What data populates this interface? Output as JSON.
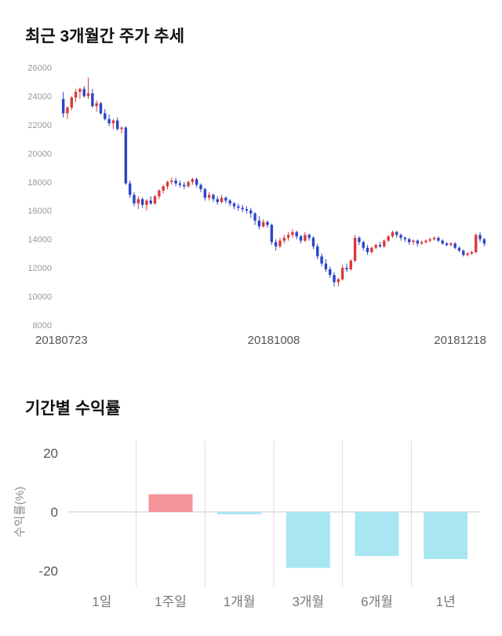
{
  "price_section": {
    "title": "최근 3개월간 주가 추세"
  },
  "returns_section": {
    "title": "기간별 수익률"
  },
  "chart_data": [
    {
      "type": "candlestick",
      "title": "최근 3개월간 주가 추세",
      "ylim": [
        8000,
        26000
      ],
      "yticks": [
        26000,
        24000,
        22000,
        20000,
        18000,
        16000,
        14000,
        12000,
        10000,
        8000
      ],
      "xtick_labels": [
        "20180723",
        "20181008",
        "20181218"
      ],
      "colors": {
        "up": "#d93a3a",
        "down": "#2b45c8",
        "tick_text": "#999999",
        "xlabel_text": "#555555"
      },
      "candles": [
        [
          23800,
          24300,
          22500,
          22800
        ],
        [
          22800,
          23300,
          22400,
          23200
        ],
        [
          23200,
          24000,
          23000,
          23900
        ],
        [
          23900,
          24500,
          23600,
          24300
        ],
        [
          24300,
          24600,
          23800,
          24500
        ],
        [
          24500,
          24700,
          23900,
          24000
        ],
        [
          24000,
          25300,
          23800,
          24200
        ],
        [
          24200,
          24500,
          23200,
          23300
        ],
        [
          23300,
          23700,
          22900,
          23500
        ],
        [
          23500,
          23600,
          22700,
          22800
        ],
        [
          22800,
          23100,
          22300,
          22400
        ],
        [
          22400,
          22700,
          21900,
          22100
        ],
        [
          22100,
          22400,
          21700,
          22300
        ],
        [
          22300,
          22500,
          21600,
          21700
        ],
        [
          21700,
          21900,
          21400,
          21800
        ],
        [
          21800,
          21900,
          17800,
          17900
        ],
        [
          17900,
          18100,
          16900,
          17100
        ],
        [
          17100,
          17300,
          16300,
          16500
        ],
        [
          16500,
          17000,
          16100,
          16800
        ],
        [
          16800,
          16900,
          16200,
          16400
        ],
        [
          16400,
          16800,
          16000,
          16700
        ],
        [
          16700,
          17000,
          16400,
          16500
        ],
        [
          16500,
          17100,
          16400,
          17000
        ],
        [
          17000,
          17500,
          16800,
          17400
        ],
        [
          17400,
          17800,
          17200,
          17700
        ],
        [
          17700,
          18100,
          17500,
          18000
        ],
        [
          18000,
          18300,
          17800,
          18100
        ],
        [
          18100,
          18300,
          17700,
          17900
        ],
        [
          17900,
          18100,
          17600,
          17800
        ],
        [
          17800,
          18000,
          17500,
          17700
        ],
        [
          17700,
          18100,
          17600,
          18000
        ],
        [
          18000,
          18300,
          17800,
          18200
        ],
        [
          18200,
          18300,
          17600,
          17800
        ],
        [
          17800,
          17900,
          17300,
          17500
        ],
        [
          17500,
          17600,
          16700,
          16900
        ],
        [
          16900,
          17300,
          16700,
          17100
        ],
        [
          17100,
          17200,
          16600,
          16800
        ],
        [
          16800,
          17000,
          16400,
          16600
        ],
        [
          16600,
          17100,
          16500,
          16900
        ],
        [
          16900,
          17000,
          16500,
          16700
        ],
        [
          16700,
          16800,
          16300,
          16500
        ],
        [
          16500,
          16600,
          16100,
          16300
        ],
        [
          16300,
          16500,
          16000,
          16200
        ],
        [
          16200,
          16400,
          15900,
          16100
        ],
        [
          16100,
          16300,
          15800,
          16000
        ],
        [
          16000,
          16200,
          15500,
          15800
        ],
        [
          15800,
          15900,
          15000,
          15300
        ],
        [
          15300,
          15600,
          14700,
          14900
        ],
        [
          14900,
          15400,
          14800,
          15200
        ],
        [
          15200,
          15300,
          14800,
          15000
        ],
        [
          15000,
          15100,
          13600,
          13800
        ],
        [
          13800,
          14000,
          13200,
          13500
        ],
        [
          13500,
          14100,
          13400,
          13900
        ],
        [
          13900,
          14300,
          13700,
          14100
        ],
        [
          14100,
          14500,
          13900,
          14300
        ],
        [
          14300,
          14700,
          14100,
          14500
        ],
        [
          14500,
          14600,
          14000,
          14200
        ],
        [
          14200,
          14300,
          13700,
          13900
        ],
        [
          13900,
          14500,
          13800,
          14300
        ],
        [
          14300,
          14400,
          13900,
          14100
        ],
        [
          14100,
          14200,
          13300,
          13500
        ],
        [
          13500,
          13700,
          12600,
          12800
        ],
        [
          12800,
          13000,
          12100,
          12300
        ],
        [
          12300,
          12600,
          11700,
          11900
        ],
        [
          11900,
          12100,
          11300,
          11500
        ],
        [
          11500,
          11700,
          10700,
          11000
        ],
        [
          11000,
          11300,
          10700,
          11200
        ],
        [
          11200,
          12200,
          11100,
          12000
        ],
        [
          12000,
          12300,
          11700,
          11900
        ],
        [
          11900,
          12600,
          11800,
          12500
        ],
        [
          12500,
          14300,
          12400,
          14100
        ],
        [
          14100,
          14200,
          13600,
          13800
        ],
        [
          13800,
          13900,
          13200,
          13400
        ],
        [
          13400,
          13600,
          12900,
          13100
        ],
        [
          13100,
          13500,
          13000,
          13400
        ],
        [
          13400,
          13700,
          13300,
          13600
        ],
        [
          13600,
          13800,
          13400,
          13500
        ],
        [
          13500,
          14000,
          13400,
          13900
        ],
        [
          13900,
          14300,
          13800,
          14200
        ],
        [
          14200,
          14600,
          14100,
          14500
        ],
        [
          14500,
          14600,
          14100,
          14300
        ],
        [
          14300,
          14400,
          13900,
          14100
        ],
        [
          14100,
          14200,
          13800,
          14000
        ],
        [
          14000,
          14100,
          13600,
          13800
        ],
        [
          13800,
          14000,
          13600,
          13900
        ],
        [
          13900,
          14000,
          13500,
          13700
        ],
        [
          13700,
          13900,
          13600,
          13800
        ],
        [
          13800,
          14000,
          13700,
          13900
        ],
        [
          13900,
          14100,
          13800,
          14000
        ],
        [
          14000,
          14200,
          13900,
          14100
        ],
        [
          14100,
          14200,
          13800,
          13900
        ],
        [
          13900,
          14000,
          13600,
          13700
        ],
        [
          13700,
          13800,
          13500,
          13600
        ],
        [
          13600,
          13800,
          13500,
          13700
        ],
        [
          13700,
          13800,
          13300,
          13400
        ],
        [
          13400,
          13500,
          13100,
          13200
        ],
        [
          13200,
          13300,
          12800,
          12900
        ],
        [
          12900,
          13100,
          12800,
          13000
        ],
        [
          13000,
          13200,
          12900,
          13100
        ],
        [
          13100,
          14400,
          13000,
          14300
        ],
        [
          14300,
          14500,
          13800,
          14000
        ],
        [
          14000,
          14100,
          13500,
          13700
        ]
      ]
    },
    {
      "type": "bar",
      "title": "기간별 수익률",
      "ylabel": "수익률(%)",
      "categories": [
        "1일",
        "1주일",
        "1개월",
        "3개월",
        "6개월",
        "1년"
      ],
      "values": [
        0,
        6,
        -0.8,
        -19,
        -15,
        -16
      ],
      "yticks": [
        20,
        0,
        -20
      ],
      "ylim": [
        -24,
        24
      ],
      "colors": {
        "positive": "#f2949a",
        "negative": "#a8e6f2",
        "grid": "#dddddd",
        "zero_line": "#cccccc",
        "tick_text": "#555555",
        "category_text": "#777777",
        "ylabel_text": "#888888"
      }
    }
  ]
}
